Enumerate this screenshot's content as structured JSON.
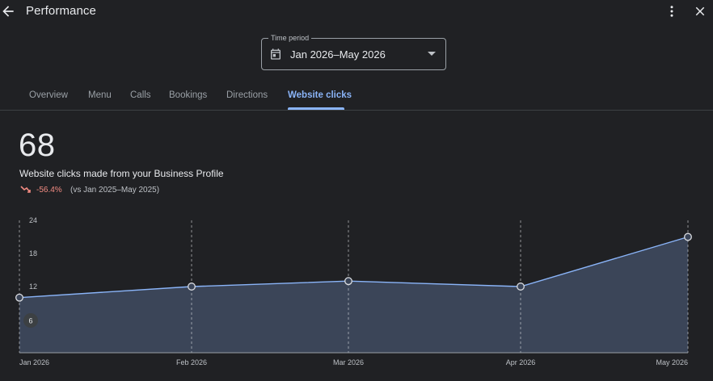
{
  "header": {
    "title": "Performance",
    "back_icon": "arrow-back-icon",
    "more_icon": "more-vert-icon",
    "close_icon": "close-icon"
  },
  "time_period": {
    "legend": "Time period",
    "value": "Jan 2026–May 2026",
    "icon": "calendar-icon"
  },
  "tabs": [
    {
      "label": "Overview",
      "active": false
    },
    {
      "label": "Menu",
      "active": false
    },
    {
      "label": "Calls",
      "active": false
    },
    {
      "label": "Bookings",
      "active": false
    },
    {
      "label": "Directions",
      "active": false
    },
    {
      "label": "Website clicks",
      "active": true
    }
  ],
  "metric": {
    "value": "68",
    "label": "Website clicks made from your Business Profile",
    "change": "-56.4%",
    "comparison": "(vs Jan 2025–May 2025)",
    "trend_icon": "trending-down-icon"
  },
  "colors": {
    "accent": "#8ab4f8",
    "negative": "#f28b82",
    "area_fill": "#3b4558",
    "background": "#202124"
  },
  "chart_data": {
    "type": "area",
    "x": [
      "Jan 2026",
      "Feb 2026",
      "Mar 2026",
      "Apr 2026",
      "May 2026"
    ],
    "series": [
      {
        "values": [
          10,
          12,
          13,
          12,
          21
        ]
      }
    ],
    "y_ticks": [
      "24",
      "18",
      "12",
      "6"
    ],
    "ylim": [
      0,
      24
    ],
    "grid": "vertical dashed",
    "point_markers": true
  }
}
